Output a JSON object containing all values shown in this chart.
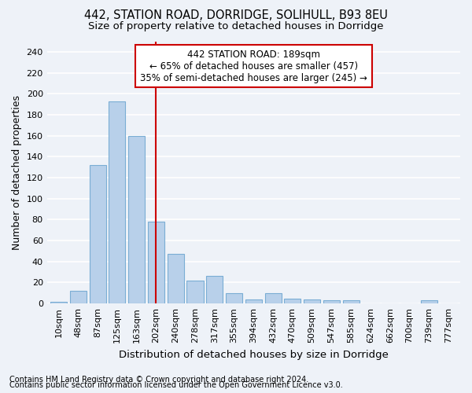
{
  "title_line1": "442, STATION ROAD, DORRIDGE, SOLIHULL, B93 8EU",
  "title_line2": "Size of property relative to detached houses in Dorridge",
  "xlabel": "Distribution of detached houses by size in Dorridge",
  "ylabel": "Number of detached properties",
  "categories": [
    "10sqm",
    "48sqm",
    "87sqm",
    "125sqm",
    "163sqm",
    "202sqm",
    "240sqm",
    "278sqm",
    "317sqm",
    "355sqm",
    "394sqm",
    "432sqm",
    "470sqm",
    "509sqm",
    "547sqm",
    "585sqm",
    "624sqm",
    "662sqm",
    "700sqm",
    "739sqm",
    "777sqm"
  ],
  "values": [
    2,
    12,
    132,
    193,
    160,
    78,
    47,
    22,
    26,
    10,
    4,
    10,
    5,
    4,
    3,
    3,
    0,
    0,
    0,
    3,
    0
  ],
  "bar_color": "#b8d0ea",
  "bar_edge_color": "#7aadd4",
  "bar_width": 0.85,
  "vline_x": 5.0,
  "vline_color": "#cc0000",
  "annotation_text": "442 STATION ROAD: 189sqm\n← 65% of detached houses are smaller (457)\n35% of semi-detached houses are larger (245) →",
  "annotation_box_color": "#ffffff",
  "annotation_box_edge": "#cc0000",
  "ylim": [
    0,
    250
  ],
  "yticks": [
    0,
    20,
    40,
    60,
    80,
    100,
    120,
    140,
    160,
    180,
    200,
    220,
    240
  ],
  "footnote1": "Contains HM Land Registry data © Crown copyright and database right 2024.",
  "footnote2": "Contains public sector information licensed under the Open Government Licence v3.0.",
  "background_color": "#eef2f8",
  "grid_color": "#ffffff",
  "title_fontsize": 10.5,
  "subtitle_fontsize": 9.5,
  "tick_fontsize": 8,
  "ylabel_fontsize": 9,
  "xlabel_fontsize": 9.5,
  "footnote_fontsize": 7,
  "annot_fontsize": 8.5
}
